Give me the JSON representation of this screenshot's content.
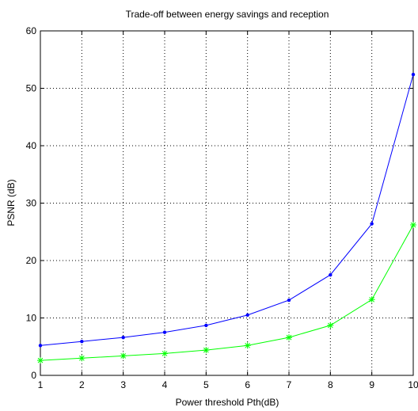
{
  "chart_data": {
    "type": "line",
    "title": "Trade-off between energy savings and reception",
    "xlabel": "Power threshold Pth(dB)",
    "ylabel": "PSNR (dB)",
    "xlim": [
      1,
      10
    ],
    "ylim": [
      0,
      60
    ],
    "xticks": [
      1,
      2,
      3,
      4,
      5,
      6,
      7,
      8,
      9,
      10
    ],
    "yticks": [
      0,
      10,
      20,
      30,
      40,
      50,
      60
    ],
    "grid": true,
    "x": [
      1,
      2,
      3,
      4,
      5,
      6,
      7,
      8,
      9,
      10
    ],
    "series": [
      {
        "color": "#0000ff",
        "marker": "point",
        "values": [
          5.2,
          5.9,
          6.6,
          7.5,
          8.7,
          10.5,
          13.1,
          17.5,
          26.4,
          52.4
        ]
      },
      {
        "color": "#00ff00",
        "marker": "star",
        "values": [
          2.6,
          3.0,
          3.4,
          3.8,
          4.4,
          5.2,
          6.6,
          8.7,
          13.2,
          26.2
        ]
      }
    ]
  }
}
